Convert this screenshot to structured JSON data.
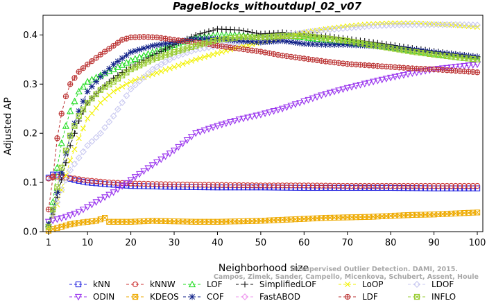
{
  "chart_data": {
    "type": "line",
    "title": "PageBlocks_withoutdupl_02_v07",
    "xlabel": "Neighborhood size",
    "ylabel": "Adjusted AP",
    "xlim": [
      1,
      100
    ],
    "ylim": [
      0,
      0.44
    ],
    "xticks": [
      1,
      10,
      20,
      30,
      40,
      50,
      60,
      70,
      80,
      90,
      100
    ],
    "yticks": [
      0.0,
      0.1,
      0.2,
      0.3,
      0.4
    ],
    "grid": false,
    "legend_position": "bottom",
    "watermark": [
      "Campos, Zimek, Sander, Campello, Micenkova, Schubert, Assent, Houle",
      "Unsupervised Outlier Detection. DAMI, 2015."
    ],
    "series": [
      {
        "name": "kNN",
        "color": "#1f1fdf",
        "marker": "square",
        "dash": "4,3",
        "points": [
          [
            1,
            0.11
          ],
          [
            2,
            0.116
          ],
          [
            3,
            0.116
          ],
          [
            4,
            0.114
          ],
          [
            5,
            0.11
          ],
          [
            7,
            0.105
          ],
          [
            10,
            0.1
          ],
          [
            15,
            0.096
          ],
          [
            20,
            0.093
          ],
          [
            30,
            0.091
          ],
          [
            40,
            0.09
          ],
          [
            50,
            0.09
          ],
          [
            60,
            0.089
          ],
          [
            70,
            0.089
          ],
          [
            80,
            0.089
          ],
          [
            90,
            0.088
          ],
          [
            100,
            0.088
          ]
        ]
      },
      {
        "name": "kNNW",
        "color": "#cc3333",
        "marker": "circle",
        "dash": "4,3",
        "points": [
          [
            1,
            0.108
          ],
          [
            2,
            0.112
          ],
          [
            3,
            0.112
          ],
          [
            5,
            0.11
          ],
          [
            7,
            0.108
          ],
          [
            10,
            0.104
          ],
          [
            15,
            0.1
          ],
          [
            20,
            0.098
          ],
          [
            30,
            0.096
          ],
          [
            40,
            0.095
          ],
          [
            50,
            0.094
          ],
          [
            60,
            0.094
          ],
          [
            70,
            0.093
          ],
          [
            80,
            0.093
          ],
          [
            90,
            0.093
          ],
          [
            100,
            0.093
          ]
        ]
      },
      {
        "name": "LOF",
        "color": "#22dd22",
        "marker": "triangle",
        "dash": "4,3",
        "points": [
          [
            1,
            0.015
          ],
          [
            2,
            0.06
          ],
          [
            3,
            0.13
          ],
          [
            4,
            0.18
          ],
          [
            5,
            0.215
          ],
          [
            6,
            0.245
          ],
          [
            8,
            0.285
          ],
          [
            10,
            0.305
          ],
          [
            13,
            0.318
          ],
          [
            16,
            0.33
          ],
          [
            20,
            0.348
          ],
          [
            25,
            0.365
          ],
          [
            30,
            0.38
          ],
          [
            35,
            0.395
          ],
          [
            40,
            0.4
          ],
          [
            45,
            0.4
          ],
          [
            50,
            0.395
          ],
          [
            55,
            0.4
          ],
          [
            60,
            0.395
          ],
          [
            65,
            0.39
          ],
          [
            70,
            0.385
          ],
          [
            75,
            0.38
          ],
          [
            80,
            0.375
          ],
          [
            85,
            0.368
          ],
          [
            90,
            0.362
          ],
          [
            95,
            0.355
          ],
          [
            100,
            0.35
          ]
        ]
      },
      {
        "name": "SimplifiedLOF",
        "color": "#111111",
        "marker": "plus",
        "dash": "4,3",
        "points": [
          [
            1,
            0.01
          ],
          [
            2,
            0.035
          ],
          [
            3,
            0.07
          ],
          [
            4,
            0.105
          ],
          [
            5,
            0.14
          ],
          [
            6,
            0.175
          ],
          [
            8,
            0.225
          ],
          [
            10,
            0.262
          ],
          [
            13,
            0.29
          ],
          [
            16,
            0.312
          ],
          [
            20,
            0.335
          ],
          [
            25,
            0.358
          ],
          [
            30,
            0.38
          ],
          [
            35,
            0.4
          ],
          [
            40,
            0.412
          ],
          [
            45,
            0.41
          ],
          [
            50,
            0.402
          ],
          [
            55,
            0.405
          ],
          [
            60,
            0.402
          ],
          [
            65,
            0.398
          ],
          [
            70,
            0.392
          ],
          [
            75,
            0.386
          ],
          [
            80,
            0.38
          ],
          [
            85,
            0.373
          ],
          [
            90,
            0.367
          ],
          [
            95,
            0.361
          ],
          [
            100,
            0.356
          ]
        ]
      },
      {
        "name": "LoOP",
        "color": "#f2f200",
        "marker": "cross",
        "dash": "4,3",
        "points": [
          [
            1,
            0.008
          ],
          [
            2,
            0.03
          ],
          [
            3,
            0.055
          ],
          [
            4,
            0.085
          ],
          [
            5,
            0.115
          ],
          [
            6,
            0.145
          ],
          [
            8,
            0.19
          ],
          [
            10,
            0.23
          ],
          [
            13,
            0.262
          ],
          [
            16,
            0.285
          ],
          [
            20,
            0.305
          ],
          [
            25,
            0.32
          ],
          [
            30,
            0.335
          ],
          [
            35,
            0.35
          ],
          [
            40,
            0.363
          ],
          [
            45,
            0.375
          ],
          [
            50,
            0.385
          ],
          [
            55,
            0.395
          ],
          [
            60,
            0.405
          ],
          [
            65,
            0.412
          ],
          [
            70,
            0.418
          ],
          [
            75,
            0.422
          ],
          [
            80,
            0.424
          ],
          [
            85,
            0.424
          ],
          [
            90,
            0.422
          ],
          [
            95,
            0.42
          ],
          [
            100,
            0.416
          ]
        ]
      },
      {
        "name": "LDOF",
        "color": "#c8c8f0",
        "marker": "diamond",
        "dash": "4,3",
        "points": [
          [
            1,
            0.012
          ],
          [
            2,
            0.035
          ],
          [
            3,
            0.06
          ],
          [
            4,
            0.085
          ],
          [
            5,
            0.105
          ],
          [
            6,
            0.125
          ],
          [
            8,
            0.15
          ],
          [
            10,
            0.175
          ],
          [
            13,
            0.2
          ],
          [
            16,
            0.235
          ],
          [
            20,
            0.29
          ],
          [
            25,
            0.33
          ],
          [
            30,
            0.355
          ],
          [
            35,
            0.37
          ],
          [
            40,
            0.378
          ],
          [
            45,
            0.385
          ],
          [
            50,
            0.392
          ],
          [
            55,
            0.398
          ],
          [
            60,
            0.405
          ],
          [
            65,
            0.41
          ],
          [
            70,
            0.414
          ],
          [
            75,
            0.418
          ],
          [
            80,
            0.42
          ],
          [
            85,
            0.421
          ],
          [
            90,
            0.421
          ],
          [
            95,
            0.421
          ],
          [
            100,
            0.42
          ]
        ]
      },
      {
        "name": "ODIN",
        "color": "#9933ee",
        "marker": "triangle-down",
        "dash": "4,3",
        "points": [
          [
            1,
            0.02
          ],
          [
            3,
            0.025
          ],
          [
            5,
            0.03
          ],
          [
            8,
            0.04
          ],
          [
            10,
            0.05
          ],
          [
            13,
            0.065
          ],
          [
            16,
            0.08
          ],
          [
            20,
            0.105
          ],
          [
            25,
            0.135
          ],
          [
            30,
            0.165
          ],
          [
            35,
            0.2
          ],
          [
            40,
            0.215
          ],
          [
            45,
            0.228
          ],
          [
            50,
            0.238
          ],
          [
            55,
            0.25
          ],
          [
            60,
            0.265
          ],
          [
            65,
            0.28
          ],
          [
            70,
            0.292
          ],
          [
            75,
            0.303
          ],
          [
            80,
            0.313
          ],
          [
            85,
            0.322
          ],
          [
            90,
            0.33
          ],
          [
            95,
            0.335
          ],
          [
            100,
            0.34
          ]
        ]
      },
      {
        "name": "KDEOS",
        "color": "#eeaa00",
        "marker": "square-x",
        "dash": "4,3",
        "points": [
          [
            1,
            0.002
          ],
          [
            2,
            0.005
          ],
          [
            4,
            0.01
          ],
          [
            6,
            0.015
          ],
          [
            8,
            0.018
          ],
          [
            10,
            0.02
          ],
          [
            12,
            0.022
          ],
          [
            14,
            0.028
          ],
          [
            15,
            0.02
          ],
          [
            18,
            0.02
          ],
          [
            20,
            0.02
          ],
          [
            25,
            0.022
          ],
          [
            30,
            0.021
          ],
          [
            35,
            0.02
          ],
          [
            40,
            0.02
          ],
          [
            45,
            0.021
          ],
          [
            50,
            0.022
          ],
          [
            55,
            0.024
          ],
          [
            60,
            0.026
          ],
          [
            65,
            0.028
          ],
          [
            70,
            0.029
          ],
          [
            75,
            0.03
          ],
          [
            80,
            0.032
          ],
          [
            85,
            0.034
          ],
          [
            90,
            0.035
          ],
          [
            95,
            0.037
          ],
          [
            100,
            0.039
          ]
        ]
      },
      {
        "name": "COF",
        "color": "#112288",
        "marker": "asterisk",
        "dash": "4,3",
        "points": [
          [
            1,
            0.015
          ],
          [
            2,
            0.045
          ],
          [
            3,
            0.08
          ],
          [
            4,
            0.12
          ],
          [
            5,
            0.16
          ],
          [
            6,
            0.195
          ],
          [
            8,
            0.245
          ],
          [
            10,
            0.285
          ],
          [
            13,
            0.315
          ],
          [
            16,
            0.34
          ],
          [
            20,
            0.365
          ],
          [
            25,
            0.378
          ],
          [
            30,
            0.385
          ],
          [
            35,
            0.392
          ],
          [
            40,
            0.392
          ],
          [
            45,
            0.388
          ],
          [
            50,
            0.385
          ],
          [
            55,
            0.388
          ],
          [
            60,
            0.382
          ],
          [
            65,
            0.38
          ],
          [
            70,
            0.38
          ],
          [
            75,
            0.378
          ],
          [
            80,
            0.375
          ],
          [
            85,
            0.37
          ],
          [
            90,
            0.365
          ],
          [
            95,
            0.36
          ],
          [
            100,
            0.355
          ]
        ]
      },
      {
        "name": "FastABOD",
        "color": "#ee99ee",
        "marker": "diamond",
        "dash": "4,3",
        "points": []
      },
      {
        "name": "LDF",
        "color": "#bb3333",
        "marker": "circle-plus",
        "dash": "4,3",
        "points": [
          [
            1,
            0.045
          ],
          [
            2,
            0.11
          ],
          [
            3,
            0.19
          ],
          [
            4,
            0.24
          ],
          [
            5,
            0.275
          ],
          [
            6,
            0.3
          ],
          [
            8,
            0.325
          ],
          [
            10,
            0.34
          ],
          [
            13,
            0.36
          ],
          [
            16,
            0.378
          ],
          [
            18,
            0.39
          ],
          [
            20,
            0.395
          ],
          [
            23,
            0.396
          ],
          [
            26,
            0.395
          ],
          [
            30,
            0.39
          ],
          [
            35,
            0.385
          ],
          [
            40,
            0.378
          ],
          [
            45,
            0.372
          ],
          [
            50,
            0.366
          ],
          [
            55,
            0.358
          ],
          [
            60,
            0.352
          ],
          [
            65,
            0.346
          ],
          [
            70,
            0.341
          ],
          [
            75,
            0.338
          ],
          [
            80,
            0.335
          ],
          [
            85,
            0.332
          ],
          [
            90,
            0.33
          ],
          [
            95,
            0.327
          ],
          [
            100,
            0.324
          ]
        ]
      },
      {
        "name": "INFLO",
        "color": "#99cc33",
        "marker": "square-x",
        "dash": "4,3",
        "points": [
          [
            1,
            0.01
          ],
          [
            2,
            0.045
          ],
          [
            3,
            0.09
          ],
          [
            4,
            0.13
          ],
          [
            5,
            0.165
          ],
          [
            6,
            0.195
          ],
          [
            8,
            0.235
          ],
          [
            10,
            0.262
          ],
          [
            13,
            0.288
          ],
          [
            16,
            0.305
          ],
          [
            20,
            0.33
          ],
          [
            25,
            0.35
          ],
          [
            30,
            0.365
          ],
          [
            35,
            0.378
          ],
          [
            40,
            0.39
          ],
          [
            45,
            0.395
          ],
          [
            50,
            0.395
          ],
          [
            55,
            0.398
          ],
          [
            60,
            0.398
          ],
          [
            65,
            0.393
          ],
          [
            70,
            0.388
          ],
          [
            75,
            0.38
          ],
          [
            80,
            0.373
          ],
          [
            85,
            0.366
          ],
          [
            90,
            0.36
          ],
          [
            95,
            0.355
          ],
          [
            100,
            0.35
          ]
        ]
      }
    ]
  },
  "legend": {
    "rows": [
      [
        "kNN",
        "kNNW",
        "LOF",
        "SimplifiedLOF",
        "LoOP",
        "LDOF"
      ],
      [
        "ODIN",
        "KDEOS",
        "COF",
        "FastABOD",
        "LDF",
        "INFLO"
      ]
    ]
  }
}
